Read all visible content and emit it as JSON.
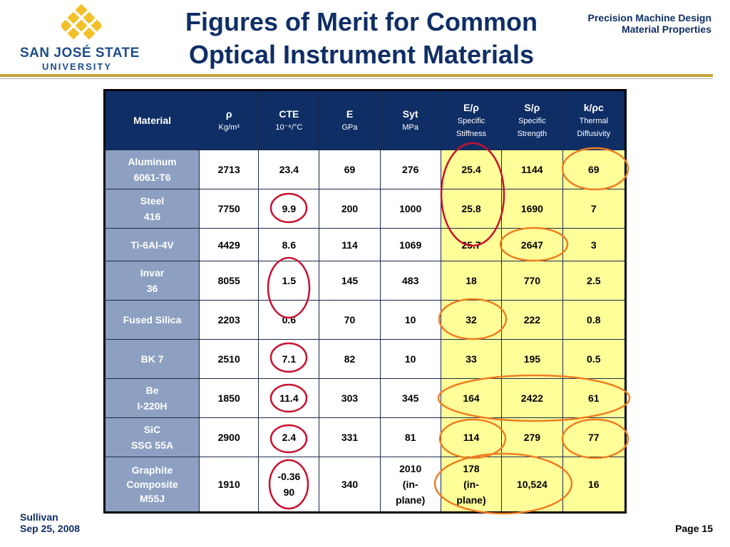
{
  "logo": {
    "line1": "SAN JOSÉ STATE",
    "line2": "UNIVERSITY"
  },
  "title_line1": "Figures of Merit for Common",
  "title_line2": "Optical Instrument Materials",
  "subtitle_line1": "Precision Machine Design",
  "subtitle_line2": "Material Properties",
  "colors": {
    "navy": "#0f2e66",
    "material_cell": "#8da0c2",
    "highlight": "#ffff99",
    "red_circle": "#c8102e",
    "orange_circle": "#ef7d22",
    "rule_gold": "#c7a53a"
  },
  "table": {
    "headers": [
      {
        "label": "Material",
        "unit": ""
      },
      {
        "label": "ρ",
        "unit": "Kg/m³"
      },
      {
        "label": "CTE",
        "unit": "10⁻⁶/°C"
      },
      {
        "label": "E",
        "unit": "GPa"
      },
      {
        "label": "Syt",
        "unit": "MPa"
      },
      {
        "label": "E/ρ",
        "unit1": "Specific",
        "unit2": "Stiffness"
      },
      {
        "label": "S/ρ",
        "unit1": "Specific",
        "unit2": "Strength"
      },
      {
        "label": "k/ρc",
        "unit1": "Thermal",
        "unit2": "Diffusivity"
      }
    ],
    "rows": [
      {
        "m1": "Aluminum",
        "m2": "6061-T6",
        "rho": "2713",
        "cte": "23.4",
        "e": "69",
        "syt": "276",
        "ep": "25.4",
        "sp": "1144",
        "kpc": "69"
      },
      {
        "m1": "Steel",
        "m2": "416",
        "rho": "7750",
        "cte": "9.9",
        "e": "200",
        "syt": "1000",
        "ep": "25.8",
        "sp": "1690",
        "kpc": "7"
      },
      {
        "m1": "Ti-6Al-4V",
        "m2": "",
        "rho": "4429",
        "cte": "8.6",
        "e": "114",
        "syt": "1069",
        "ep": "25.7",
        "sp": "2647",
        "kpc": "3"
      },
      {
        "m1": "Invar",
        "m2": "36",
        "rho": "8055",
        "cte": "1.5",
        "e": "145",
        "syt": "483",
        "ep": "18",
        "sp": "770",
        "kpc": "2.5"
      },
      {
        "m1": "Fused Silica",
        "m2": "",
        "rho": "2203",
        "cte": "0.6",
        "e": "70",
        "syt": "10",
        "ep": "32",
        "sp": "222",
        "kpc": "0.8"
      },
      {
        "m1": "BK 7",
        "m2": "",
        "rho": "2510",
        "cte": "7.1",
        "e": "82",
        "syt": "10",
        "ep": "33",
        "sp": "195",
        "kpc": "0.5"
      },
      {
        "m1": "Be",
        "m2": "I-220H",
        "rho": "1850",
        "cte": "11.4",
        "e": "303",
        "syt": "345",
        "ep": "164",
        "sp": "2422",
        "kpc": "61"
      },
      {
        "m1": "SiC",
        "m2": "SSG 55A",
        "rho": "2900",
        "cte": "2.4",
        "e": "331",
        "syt": "81",
        "ep": "114",
        "sp": "279",
        "kpc": "77"
      },
      {
        "m1": "Graphite",
        "m2": "Composite",
        "m3": "M55J",
        "rho": "1910",
        "cte1": "-0.36",
        "cte2": "90",
        "e": "340",
        "syt1": "2010",
        "syt2": "(in-",
        "syt3": "plane)",
        "ep1": "178",
        "ep2": "(in-",
        "ep3": "plane)",
        "sp": "10,524",
        "kpc": "16"
      }
    ]
  },
  "footer": {
    "author": "Sullivan",
    "date": "Sep 25, 2008",
    "page": "Page 15"
  }
}
